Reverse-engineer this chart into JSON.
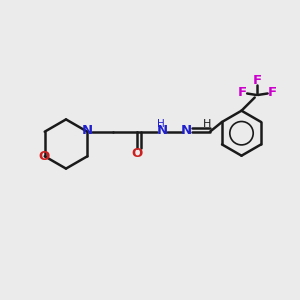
{
  "background_color": "#ebebeb",
  "bond_color": "#1a1a1a",
  "N_color": "#2020cc",
  "O_color": "#cc2020",
  "F_color": "#cc00cc",
  "figsize": [
    3.0,
    3.0
  ],
  "dpi": 100,
  "xlim": [
    0,
    10
  ],
  "ylim": [
    0,
    10
  ],
  "lw": 1.8,
  "fs": 9.5,
  "fs_small": 8.0
}
